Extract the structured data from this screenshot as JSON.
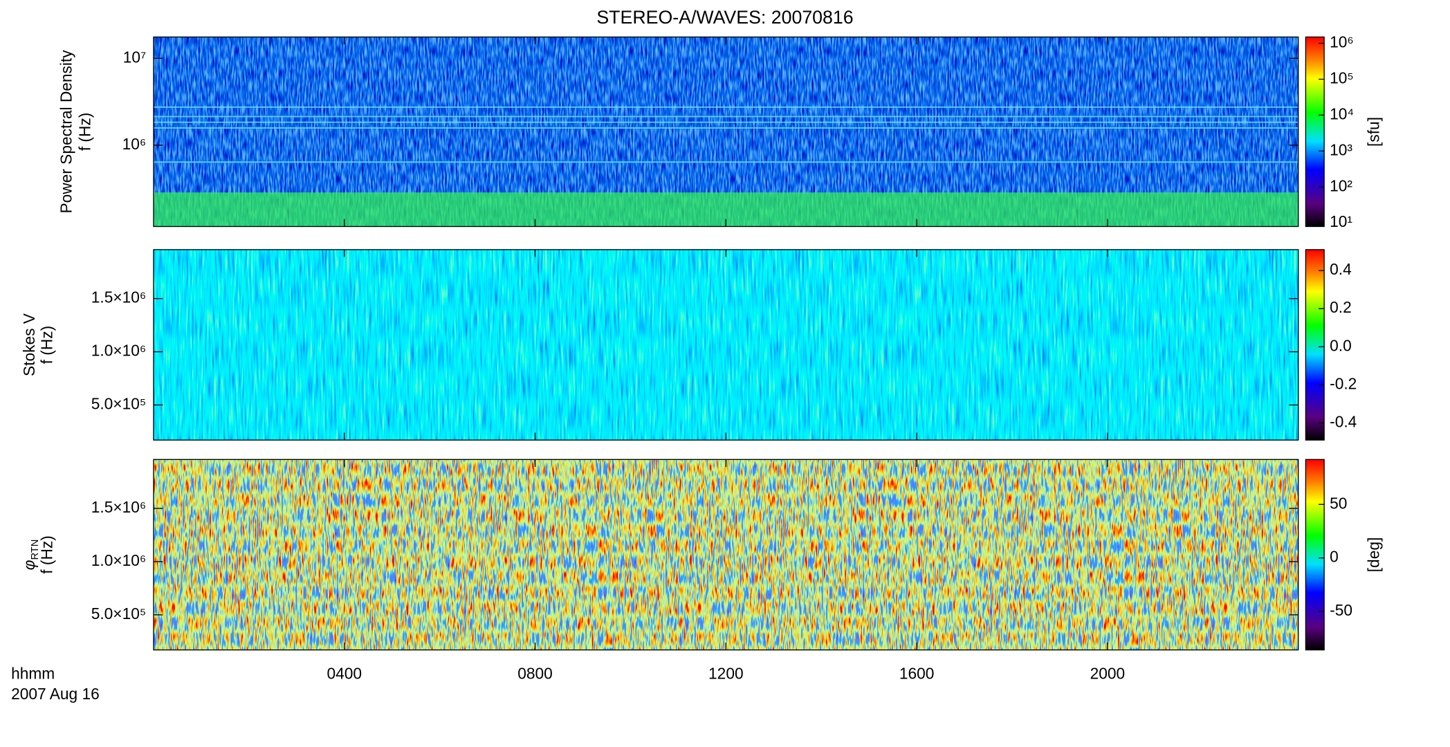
{
  "chart_data": [
    {
      "type": "spectrogram",
      "title": "STEREO-A/WAVES: 20070816",
      "ylabel": "Power Spectral Density",
      "ylabel_unit": "f (Hz)",
      "yscale": "log",
      "ylim": [
        116000,
        17600000
      ],
      "yticks": [
        {
          "value": 1000000,
          "label": "10⁶"
        },
        {
          "value": 10000000,
          "label": "10⁷"
        }
      ],
      "cscale": "log",
      "clim": [
        7.9,
        1500000
      ],
      "cticks": [
        {
          "value": 10,
          "label": "10¹"
        },
        {
          "value": 100,
          "label": "10²"
        },
        {
          "value": 1000,
          "label": "10³"
        },
        {
          "value": 10000,
          "label": "10⁴"
        },
        {
          "value": 100000,
          "label": "10⁵"
        },
        {
          "value": 1000000,
          "label": "10⁶"
        }
      ],
      "clabel": "[sfu]"
    },
    {
      "type": "spectrogram",
      "ylabel": "Stokes V",
      "ylabel_unit": "f (Hz)",
      "yscale": "linear",
      "ylim": [
        170000,
        1960000
      ],
      "yticks": [
        {
          "value": 500000,
          "label": "5.0×10⁵"
        },
        {
          "value": 1000000,
          "label": "1.0×10⁶"
        },
        {
          "value": 1500000,
          "label": "1.5×10⁶"
        }
      ],
      "cscale": "linear",
      "clim": [
        -0.49,
        0.51
      ],
      "cticks": [
        -0.4,
        -0.2,
        {
          "value": 0,
          "label": "0.0"
        },
        0.2,
        0.4
      ]
    },
    {
      "type": "spectrogram",
      "ylabel_symbol": "φ",
      "ylabel_subscript": "RTN",
      "ylabel_unit": "f (Hz)",
      "yscale": "linear",
      "ylim": [
        170000,
        1960000
      ],
      "yticks": [
        {
          "value": 500000,
          "label": "5.0×10⁵"
        },
        {
          "value": 1000000,
          "label": "1.0×10⁶"
        },
        {
          "value": 1500000,
          "label": "1.5×10⁶"
        }
      ],
      "cscale": "linear",
      "clim": [
        -86,
        92
      ],
      "cticks": [
        -50,
        0,
        50
      ],
      "clabel": "[deg]",
      "xlim": [
        0,
        24
      ],
      "xticks": [
        {
          "value": 4,
          "label": "0400"
        },
        {
          "value": 8,
          "label": "0800"
        },
        {
          "value": 12,
          "label": "1200"
        },
        {
          "value": 16,
          "label": "1600"
        },
        {
          "value": 20,
          "label": "2000"
        }
      ],
      "xlabel": "hhmm",
      "date": "2007 Aug 16"
    }
  ]
}
